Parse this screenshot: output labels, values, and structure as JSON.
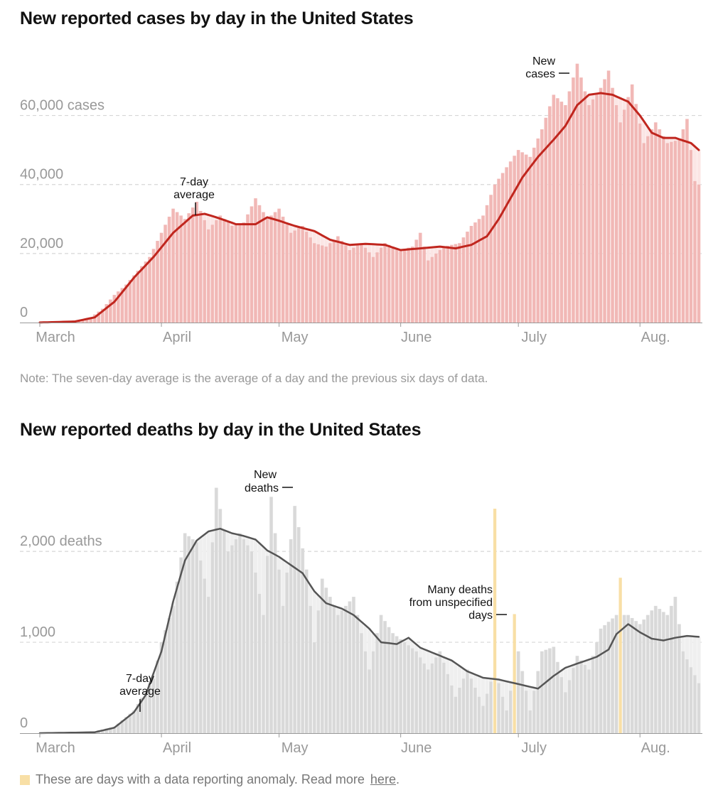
{
  "cases": {
    "title": "New reported cases by day in the United States",
    "note": "Note: The seven-day average is the average of a day and the previous six days of data.",
    "annotation_avg": [
      "7-day",
      "average"
    ],
    "annotation_bars": [
      "New",
      "cases"
    ]
  },
  "deaths": {
    "title": "New reported deaths by day in the United States",
    "annotation_avg": [
      "7-day",
      "average"
    ],
    "annotation_bars": [
      "New",
      "deaths"
    ],
    "annotation_anomaly": [
      "Many deaths",
      "from unspecified",
      "days"
    ]
  },
  "footnote": {
    "text": "These are days with a data reporting anomaly. Read more",
    "link": "here",
    "end": "."
  },
  "colors": {
    "cases_bar": "#f1b8b6",
    "cases_avg": "#c0261e",
    "cases_band": "#fbe6e5",
    "deaths_bar": "#d9d9d9",
    "deaths_avg": "#555555",
    "deaths_band": "#efefef",
    "anomaly": "#f8dfa6"
  },
  "chart_data": [
    {
      "type": "bar",
      "title": "New reported cases by day in the United States",
      "x_ticks": [
        "March",
        "April",
        "May",
        "June",
        "July",
        "Aug."
      ],
      "y_ticks": [
        "0",
        "20,000",
        "40,000",
        "60,000 cases"
      ],
      "ylim": [
        0,
        77000
      ],
      "grid": true,
      "x_range": [
        "2020-03-01",
        "2020-08-16"
      ],
      "series": [
        {
          "name": "New cases",
          "type": "bar",
          "points": [
            [
              "2020-03-01",
              0
            ],
            [
              "2020-03-10",
              300
            ],
            [
              "2020-03-14",
              1500
            ],
            [
              "2020-03-17",
              4000
            ],
            [
              "2020-03-20",
              8000
            ],
            [
              "2020-03-23",
              11000
            ],
            [
              "2020-03-26",
              15000
            ],
            [
              "2020-03-29",
              19000
            ],
            [
              "2020-04-01",
              26000
            ],
            [
              "2020-04-04",
              33000
            ],
            [
              "2020-04-07",
              30000
            ],
            [
              "2020-04-10",
              35000
            ],
            [
              "2020-04-13",
              27000
            ],
            [
              "2020-04-16",
              31000
            ],
            [
              "2020-04-19",
              28000
            ],
            [
              "2020-04-22",
              29000
            ],
            [
              "2020-04-25",
              36000
            ],
            [
              "2020-04-28",
              30000
            ],
            [
              "2020-05-01",
              33000
            ],
            [
              "2020-05-04",
              26000
            ],
            [
              "2020-05-07",
              28000
            ],
            [
              "2020-05-10",
              23000
            ],
            [
              "2020-05-13",
              22000
            ],
            [
              "2020-05-16",
              25000
            ],
            [
              "2020-05-19",
              21000
            ],
            [
              "2020-05-22",
              23000
            ],
            [
              "2020-05-25",
              19000
            ],
            [
              "2020-05-28",
              23000
            ],
            [
              "2020-06-01",
              21000
            ],
            [
              "2020-06-04",
              22000
            ],
            [
              "2020-06-06",
              26000
            ],
            [
              "2020-06-08",
              18000
            ],
            [
              "2020-06-12",
              22000
            ],
            [
              "2020-06-16",
              23000
            ],
            [
              "2020-06-19",
              28000
            ],
            [
              "2020-06-22",
              31000
            ],
            [
              "2020-06-25",
              40000
            ],
            [
              "2020-06-28",
              45000
            ],
            [
              "2020-07-01",
              50000
            ],
            [
              "2020-07-04",
              48000
            ],
            [
              "2020-07-07",
              56000
            ],
            [
              "2020-07-10",
              66000
            ],
            [
              "2020-07-13",
              63000
            ],
            [
              "2020-07-16",
              75000
            ],
            [
              "2020-07-19",
              63000
            ],
            [
              "2020-07-22",
              68000
            ],
            [
              "2020-07-24",
              73000
            ],
            [
              "2020-07-27",
              58000
            ],
            [
              "2020-07-30",
              69000
            ],
            [
              "2020-08-02",
              52000
            ],
            [
              "2020-08-05",
              58000
            ],
            [
              "2020-08-08",
              52000
            ],
            [
              "2020-08-11",
              53000
            ],
            [
              "2020-08-13",
              59000
            ],
            [
              "2020-08-15",
              41000
            ],
            [
              "2020-08-16",
              40000
            ]
          ]
        },
        {
          "name": "7-day average",
          "type": "line",
          "points": [
            [
              "2020-03-01",
              0
            ],
            [
              "2020-03-10",
              300
            ],
            [
              "2020-03-15",
              1500
            ],
            [
              "2020-03-20",
              6000
            ],
            [
              "2020-03-25",
              13000
            ],
            [
              "2020-03-30",
              19000
            ],
            [
              "2020-04-04",
              26000
            ],
            [
              "2020-04-09",
              31000
            ],
            [
              "2020-04-12",
              31500
            ],
            [
              "2020-04-15",
              30500
            ],
            [
              "2020-04-20",
              28500
            ],
            [
              "2020-04-25",
              28500
            ],
            [
              "2020-04-28",
              30500
            ],
            [
              "2020-05-01",
              29500
            ],
            [
              "2020-05-05",
              28000
            ],
            [
              "2020-05-10",
              26500
            ],
            [
              "2020-05-14",
              24000
            ],
            [
              "2020-05-19",
              22500
            ],
            [
              "2020-05-23",
              22800
            ],
            [
              "2020-05-28",
              22500
            ],
            [
              "2020-06-01",
              21000
            ],
            [
              "2020-06-06",
              21500
            ],
            [
              "2020-06-11",
              22000
            ],
            [
              "2020-06-15",
              21500
            ],
            [
              "2020-06-19",
              22500
            ],
            [
              "2020-06-23",
              25000
            ],
            [
              "2020-06-26",
              30000
            ],
            [
              "2020-06-29",
              36000
            ],
            [
              "2020-07-02",
              42000
            ],
            [
              "2020-07-06",
              48000
            ],
            [
              "2020-07-10",
              53000
            ],
            [
              "2020-07-13",
              57000
            ],
            [
              "2020-07-16",
              63000
            ],
            [
              "2020-07-19",
              66000
            ],
            [
              "2020-07-22",
              66500
            ],
            [
              "2020-07-25",
              66000
            ],
            [
              "2020-07-29",
              64000
            ],
            [
              "2020-08-01",
              60000
            ],
            [
              "2020-08-04",
              55000
            ],
            [
              "2020-08-07",
              53500
            ],
            [
              "2020-08-10",
              53500
            ],
            [
              "2020-08-14",
              52000
            ],
            [
              "2020-08-16",
              50000
            ]
          ]
        }
      ]
    },
    {
      "type": "bar",
      "title": "New reported deaths by day in the United States",
      "x_ticks": [
        "March",
        "April",
        "May",
        "June",
        "July",
        "Aug."
      ],
      "y_ticks": [
        "0",
        "1,000",
        "2,000 deaths"
      ],
      "ylim": [
        0,
        2900
      ],
      "grid": true,
      "x_range": [
        "2020-03-01",
        "2020-08-16"
      ],
      "series": [
        {
          "name": "New deaths",
          "type": "bar",
          "points": [
            [
              "2020-03-01",
              0
            ],
            [
              "2020-03-15",
              20
            ],
            [
              "2020-03-20",
              70
            ],
            [
              "2020-03-25",
              250
            ],
            [
              "2020-03-30",
              600
            ],
            [
              "2020-04-01",
              1000
            ],
            [
              "2020-04-04",
              1400
            ],
            [
              "2020-04-07",
              2200
            ],
            [
              "2020-04-10",
              2100
            ],
            [
              "2020-04-13",
              1500
            ],
            [
              "2020-04-15",
              2700
            ],
            [
              "2020-04-18",
              2000
            ],
            [
              "2020-04-21",
              2200
            ],
            [
              "2020-04-24",
              2000
            ],
            [
              "2020-04-27",
              1300
            ],
            [
              "2020-04-29",
              2600
            ],
            [
              "2020-05-02",
              1400
            ],
            [
              "2020-05-05",
              2500
            ],
            [
              "2020-05-08",
              1800
            ],
            [
              "2020-05-10",
              1000
            ],
            [
              "2020-05-12",
              1700
            ],
            [
              "2020-05-16",
              1300
            ],
            [
              "2020-05-20",
              1500
            ],
            [
              "2020-05-24",
              700
            ],
            [
              "2020-05-27",
              1300
            ],
            [
              "2020-05-30",
              1100
            ],
            [
              "2020-06-02",
              1000
            ],
            [
              "2020-06-05",
              900
            ],
            [
              "2020-06-08",
              700
            ],
            [
              "2020-06-11",
              900
            ],
            [
              "2020-06-15",
              400
            ],
            [
              "2020-06-18",
              700
            ],
            [
              "2020-06-22",
              300
            ],
            [
              "2020-06-25",
              700
            ],
            [
              "2020-06-28",
              250
            ],
            [
              "2020-07-01",
              900
            ],
            [
              "2020-07-04",
              250
            ],
            [
              "2020-07-07",
              900
            ],
            [
              "2020-07-10",
              950
            ],
            [
              "2020-07-13",
              450
            ],
            [
              "2020-07-16",
              850
            ],
            [
              "2020-07-19",
              700
            ],
            [
              "2020-07-22",
              1150
            ],
            [
              "2020-07-26",
              1300
            ],
            [
              "2020-07-29",
              1300
            ],
            [
              "2020-08-01",
              1200
            ],
            [
              "2020-08-05",
              1400
            ],
            [
              "2020-08-08",
              1300
            ],
            [
              "2020-08-10",
              1500
            ],
            [
              "2020-08-12",
              900
            ],
            [
              "2020-08-16",
              550
            ]
          ]
        },
        {
          "name": "7-day average",
          "type": "line",
          "points": [
            [
              "2020-03-01",
              0
            ],
            [
              "2020-03-15",
              10
            ],
            [
              "2020-03-20",
              60
            ],
            [
              "2020-03-25",
              230
            ],
            [
              "2020-03-28",
              420
            ],
            [
              "2020-04-01",
              900
            ],
            [
              "2020-04-04",
              1450
            ],
            [
              "2020-04-07",
              1900
            ],
            [
              "2020-04-10",
              2120
            ],
            [
              "2020-04-13",
              2220
            ],
            [
              "2020-04-16",
              2250
            ],
            [
              "2020-04-19",
              2200
            ],
            [
              "2020-04-22",
              2170
            ],
            [
              "2020-04-25",
              2130
            ],
            [
              "2020-04-28",
              2010
            ],
            [
              "2020-05-01",
              1940
            ],
            [
              "2020-05-04",
              1850
            ],
            [
              "2020-05-07",
              1760
            ],
            [
              "2020-05-10",
              1560
            ],
            [
              "2020-05-13",
              1430
            ],
            [
              "2020-05-17",
              1370
            ],
            [
              "2020-05-20",
              1300
            ],
            [
              "2020-05-24",
              1150
            ],
            [
              "2020-05-27",
              1000
            ],
            [
              "2020-05-31",
              980
            ],
            [
              "2020-06-03",
              1050
            ],
            [
              "2020-06-06",
              940
            ],
            [
              "2020-06-10",
              870
            ],
            [
              "2020-06-14",
              800
            ],
            [
              "2020-06-18",
              680
            ],
            [
              "2020-06-22",
              610
            ],
            [
              "2020-06-26",
              590
            ],
            [
              "2020-06-29",
              560
            ],
            [
              "2020-07-03",
              520
            ],
            [
              "2020-07-06",
              490
            ],
            [
              "2020-07-10",
              630
            ],
            [
              "2020-07-13",
              720
            ],
            [
              "2020-07-17",
              780
            ],
            [
              "2020-07-21",
              840
            ],
            [
              "2020-07-24",
              920
            ],
            [
              "2020-07-26",
              1090
            ],
            [
              "2020-07-29",
              1200
            ],
            [
              "2020-08-01",
              1110
            ],
            [
              "2020-08-04",
              1040
            ],
            [
              "2020-08-07",
              1020
            ],
            [
              "2020-08-10",
              1050
            ],
            [
              "2020-08-13",
              1070
            ],
            [
              "2020-08-16",
              1060
            ]
          ]
        },
        {
          "name": "Data reporting anomaly",
          "type": "bar",
          "points": [
            [
              "2020-06-25",
              2470
            ],
            [
              "2020-06-30",
              1310
            ],
            [
              "2020-07-27",
              1710
            ]
          ]
        }
      ]
    }
  ]
}
